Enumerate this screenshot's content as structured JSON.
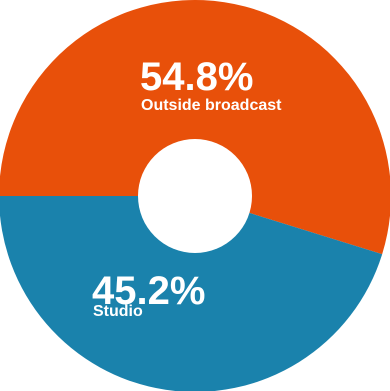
{
  "chart_data": {
    "type": "pie",
    "variant": "donut",
    "slices": [
      {
        "label": "Outside broadcast",
        "value": 54.8,
        "value_text": "54.8%",
        "color": "#E8500A"
      },
      {
        "label": "Studio",
        "value": 45.2,
        "value_text": "45.2%",
        "color": "#1A82AC"
      }
    ]
  }
}
